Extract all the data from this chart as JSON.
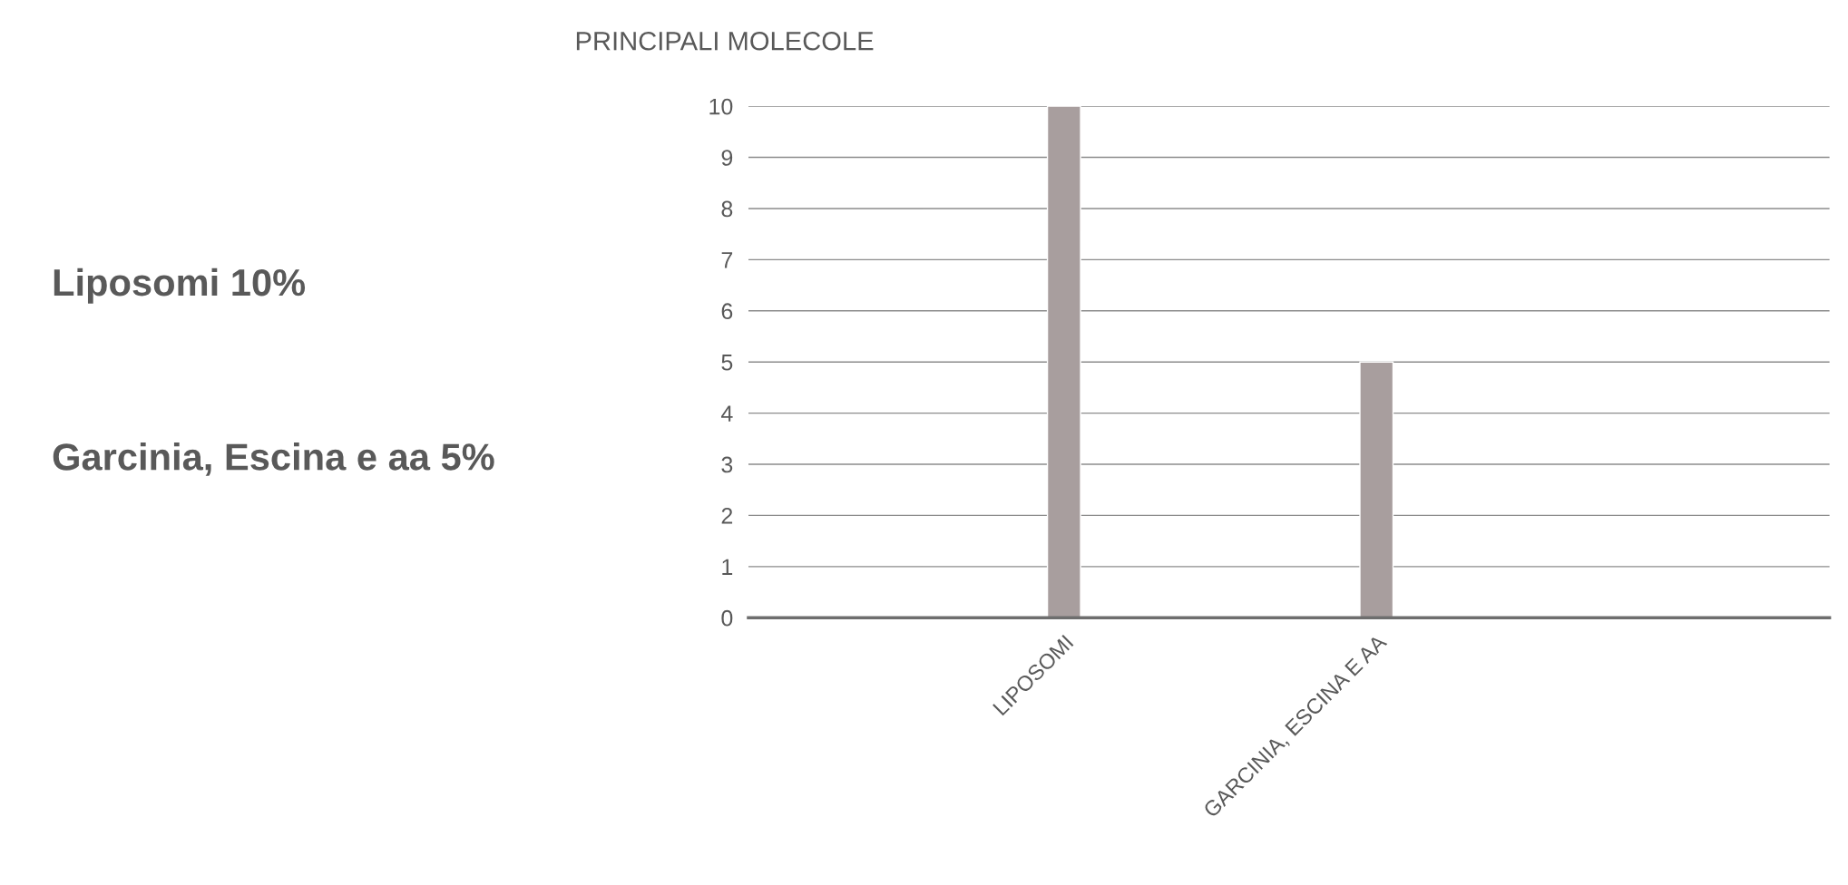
{
  "chart_data": {
    "type": "bar",
    "title": "PRINCIPALI MOLECOLE",
    "categories": [
      "LIPOSOMI",
      "GARCINIA, ESCINA E AA"
    ],
    "values": [
      10,
      5
    ],
    "color": "#a89e9e",
    "ylim": [
      0,
      10
    ],
    "yticks": [
      0,
      1,
      2,
      3,
      4,
      5,
      6,
      7,
      8,
      9,
      10
    ],
    "grid": "y",
    "annotations": [
      "Liposomi 10%",
      "Garcinia, Escina e aa 5%"
    ]
  }
}
